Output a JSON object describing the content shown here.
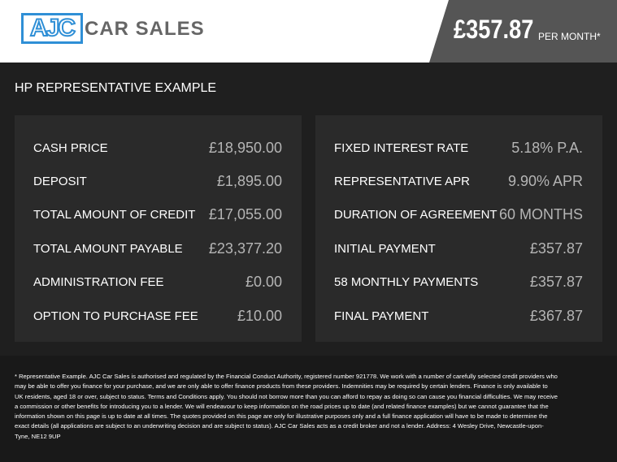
{
  "header": {
    "logo": {
      "mark": "AJC",
      "text": "CAR SALES"
    },
    "price": "£357.87",
    "price_suffix": "PER MONTH*"
  },
  "title": "HP REPRESENTATIVE EXAMPLE",
  "panels": [
    {
      "rows": [
        [
          "CASH PRICE",
          "£18,950.00"
        ],
        [
          "DEPOSIT",
          "£1,895.00"
        ],
        [
          "TOTAL AMOUNT OF CREDIT",
          "£17,055.00"
        ],
        [
          "TOTAL AMOUNT PAYABLE",
          "£23,377.20"
        ],
        [
          "ADMINISTRATION FEE",
          "£0.00"
        ],
        [
          "OPTION TO PURCHASE FEE",
          "£10.00"
        ]
      ]
    },
    {
      "rows": [
        [
          "FIXED INTEREST RATE",
          "5.18% P.A."
        ],
        [
          "REPRESENTATIVE APR",
          "9.90% APR"
        ],
        [
          "DURATION OF AGREEMENT",
          "60 MONTHS"
        ],
        [
          "INITIAL PAYMENT",
          "£357.87"
        ],
        [
          "58 MONTHLY PAYMENTS",
          "£357.87"
        ],
        [
          "FINAL PAYMENT",
          "£367.87"
        ]
      ]
    }
  ],
  "footnote": "* Representative Example. AJC Car Sales is authorised and regulated by the Financial Conduct Authority, registered number 921778. We work with a number of carefully selected credit providers who may be able to offer you finance for your purchase, and we are only able to offer finance products from these providers. Indemnities may be required by certain lenders. Finance is only available to UK residents, aged 18 or over, subject to status. Terms and Conditions apply. You should not borrow more than you can afford to repay as doing so can cause you financial difficulties. We may receive a commission or other benefits for introducing you to a lender. We will endeavour to keep information on the road prices up to date (and related finance examples) but we cannot guarantee that the information shown on this page is up to date at all times. The quotes provided on this page are only for illustrative purposes only and a full finance application will have to be made to determine the exact details (all applications are subject to an underwriting decision and are subject to status). AJC Car Sales acts as a credit broker and not a lender. Address: 4 Wesley Drive, Newcastle-upon-Tyne, NE12 9UP"
}
